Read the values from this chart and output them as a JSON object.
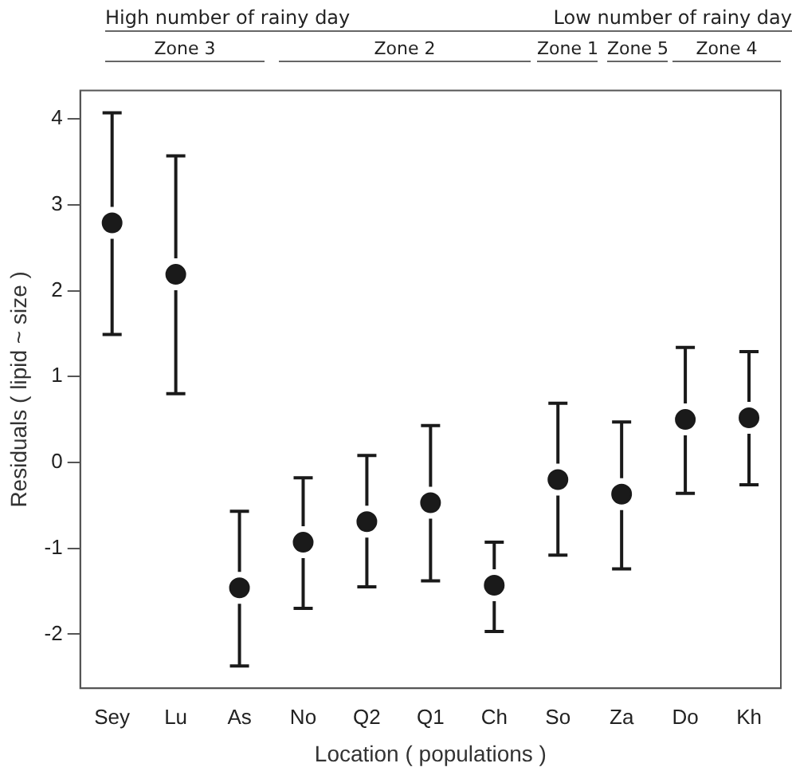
{
  "chart_data": {
    "type": "scatter",
    "xlabel": "Location ( populations )",
    "ylabel": "Residuals ( lipid ~ size )",
    "categories": [
      "Sey",
      "Lu",
      "As",
      "No",
      "Q2",
      "Q1",
      "Ch",
      "So",
      "Za",
      "Do",
      "Kh"
    ],
    "values": [
      2.79,
      2.19,
      -1.46,
      -0.93,
      -0.69,
      -0.47,
      -1.43,
      -0.2,
      -0.37,
      0.5,
      0.52
    ],
    "errors": [
      [
        1.49,
        4.07
      ],
      [
        0.8,
        3.57
      ],
      [
        -2.37,
        -0.57
      ],
      [
        -1.7,
        -0.18
      ],
      [
        -1.45,
        0.08
      ],
      [
        -1.38,
        0.43
      ],
      [
        -1.97,
        -0.93
      ],
      [
        -1.08,
        0.69
      ],
      [
        -1.24,
        0.47
      ],
      [
        -0.36,
        1.34
      ],
      [
        -0.26,
        1.29
      ]
    ],
    "color": "#1a1a1a",
    "marker": "circle",
    "ylim": [
      -2.63,
      4.33
    ],
    "yticks": [
      -2,
      -1,
      0,
      1,
      2,
      3,
      4
    ],
    "grid": false,
    "legend": false,
    "annotations": [
      "High number of rainy day",
      "Low number of rainy day",
      "Zone 3",
      "Zone 2",
      "Zone 1",
      "Zone 5",
      "Zone 4"
    ]
  }
}
